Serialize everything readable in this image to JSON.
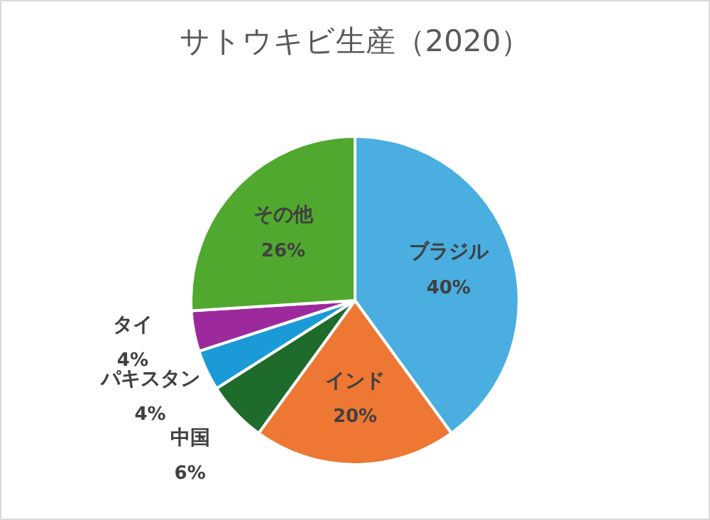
{
  "chart_data": {
    "type": "pie",
    "title": "サトウキビ生産（2020）",
    "categories": [
      "ブラジル",
      "インド",
      "中国",
      "パキスタン",
      "タイ",
      "その他"
    ],
    "values": [
      40,
      20,
      6,
      4,
      4,
      26
    ],
    "value_labels": [
      "40%",
      "20%",
      "6%",
      "4%",
      "4%",
      "26%"
    ],
    "colors": [
      "#4aaee0",
      "#ee7734",
      "#1f6b2b",
      "#1a9bd7",
      "#9c2a9c",
      "#50a82f"
    ],
    "legend": false
  }
}
